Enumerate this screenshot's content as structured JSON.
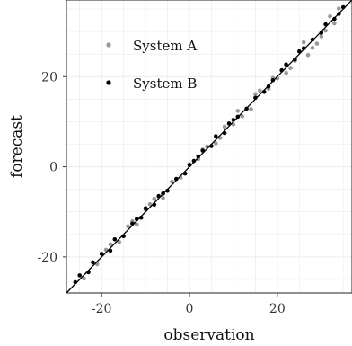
{
  "chart_data": {
    "type": "scatter",
    "title": "",
    "xlabel": "observation",
    "ylabel": "forecast",
    "xlim": [
      -28,
      37
    ],
    "ylim": [
      -28,
      37
    ],
    "x_ticks": [
      -20,
      0,
      20
    ],
    "y_ticks": [
      -20,
      0,
      20
    ],
    "x_tick_labels": [
      "-20",
      "0",
      "20"
    ],
    "y_tick_labels": [
      "-20",
      "0",
      "20"
    ],
    "grid": true,
    "legend_position": "top-left",
    "reference_line": "identity",
    "series": [
      {
        "name": "System A",
        "color": "#999999",
        "x": [
          -24,
          -21,
          -19,
          -16,
          -14,
          -12,
          -10,
          -8,
          -6,
          -4,
          -2,
          0,
          2,
          4,
          6,
          8,
          10,
          12,
          14,
          16,
          18,
          20,
          22,
          24,
          26,
          28,
          30,
          32,
          33,
          34,
          -18,
          -9,
          3,
          11,
          19,
          27,
          -13,
          7,
          15,
          23,
          29,
          31
        ],
        "y": [
          -24.8,
          -21.6,
          -18.4,
          -16.7,
          -13.2,
          -12.8,
          -9.5,
          -7.1,
          -6.9,
          -3.3,
          -2.4,
          0.6,
          1.7,
          4.5,
          5.2,
          8.9,
          9.4,
          11.2,
          12.8,
          16.9,
          17.3,
          19.6,
          20.8,
          23.5,
          27.6,
          26.4,
          28.9,
          33.4,
          31.8,
          35.1,
          -17.2,
          -8.3,
          3.8,
          12.4,
          19.7,
          24.8,
          -12.1,
          6.4,
          16.1,
          21.9,
          27.3,
          30.2
        ]
      },
      {
        "name": "System B",
        "color": "#000000",
        "x": [
          -26,
          -25,
          -23,
          -22,
          -20,
          -18,
          -17,
          -15,
          -13,
          -11,
          -10,
          -8,
          -7,
          -5,
          -3,
          -1,
          0,
          1,
          3,
          5,
          6,
          8,
          9,
          11,
          13,
          15,
          17,
          19,
          21,
          22,
          24,
          26,
          28,
          30,
          31,
          33,
          35,
          -12,
          -6,
          2,
          10,
          18,
          25,
          34
        ],
        "y": [
          -25.6,
          -24.1,
          -23.4,
          -21.2,
          -19.3,
          -18.6,
          -16.1,
          -15.4,
          -12.6,
          -11.3,
          -9.2,
          -8.4,
          -6.5,
          -5.3,
          -2.7,
          -1.5,
          0.4,
          1.3,
          3.6,
          4.6,
          6.8,
          7.5,
          9.6,
          11.1,
          12.9,
          15.3,
          16.6,
          19.2,
          21.4,
          22.7,
          23.8,
          26.3,
          28.2,
          29.7,
          31.6,
          32.8,
          35.4,
          -11.6,
          -5.9,
          2.3,
          10.4,
          17.8,
          25.6,
          33.9
        ]
      }
    ]
  }
}
